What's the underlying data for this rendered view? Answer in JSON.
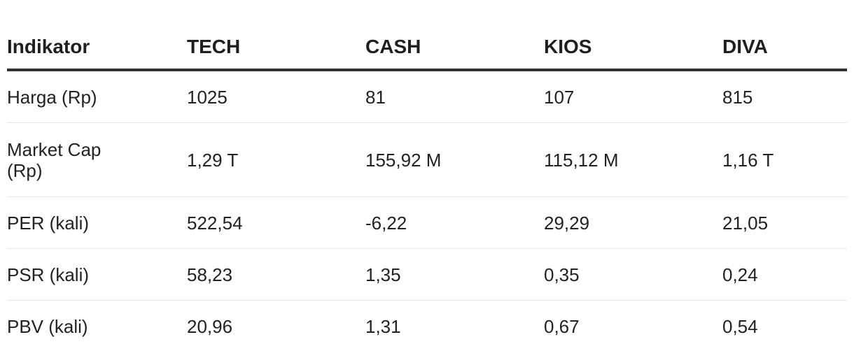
{
  "table": {
    "headers": [
      "Indikator",
      "TECH",
      "CASH",
      "KIOS",
      "DIVA"
    ],
    "rows": [
      [
        "Harga (Rp)",
        "1025",
        "81",
        "107",
        "815"
      ],
      [
        "Market Cap (Rp)",
        "1,29 T",
        "155,92 M",
        "115,12 M",
        "1,16 T"
      ],
      [
        "PER (kali)",
        "522,54",
        "-6,22",
        "29,29",
        "21,05"
      ],
      [
        "PSR (kali)",
        "58,23",
        "1,35",
        "0,35",
        "0,24"
      ],
      [
        "PBV (kali)",
        "20,96",
        "1,31",
        "0,67",
        "0,54"
      ]
    ]
  },
  "colors": {
    "header_rule": "#333333",
    "row_divider": "#e6e6e6",
    "text": "#222222"
  }
}
